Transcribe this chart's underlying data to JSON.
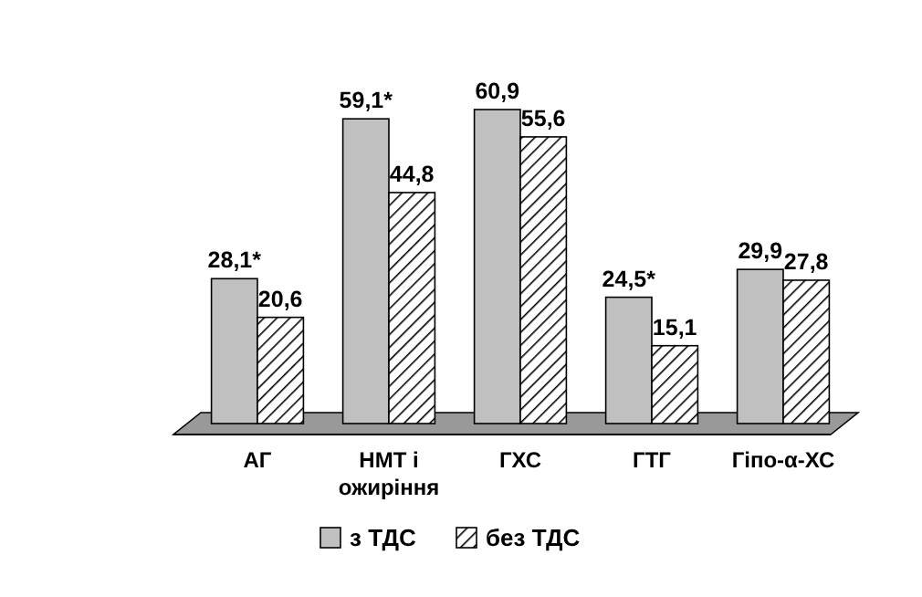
{
  "chart_data": {
    "type": "bar",
    "categories": [
      "АГ",
      "НМТ і ожиріння",
      "ГХС",
      "ГТГ",
      "Гіпо-α-ХС"
    ],
    "series": [
      {
        "name": "з ТДС",
        "color": "#c0c0c0",
        "values": [
          28.1,
          59.1,
          60.9,
          24.5,
          29.9
        ],
        "value_labels": [
          "28,1*",
          "59,1*",
          "60,9",
          "24,5*",
          "29,9"
        ]
      },
      {
        "name": "без ТДС",
        "color": "#000000",
        "values": [
          20.6,
          44.8,
          55.6,
          15.1,
          27.8
        ],
        "value_labels": [
          "20,6",
          "44,8",
          "55,6",
          "15,1",
          "27,8"
        ]
      }
    ],
    "legend": "bottom"
  }
}
